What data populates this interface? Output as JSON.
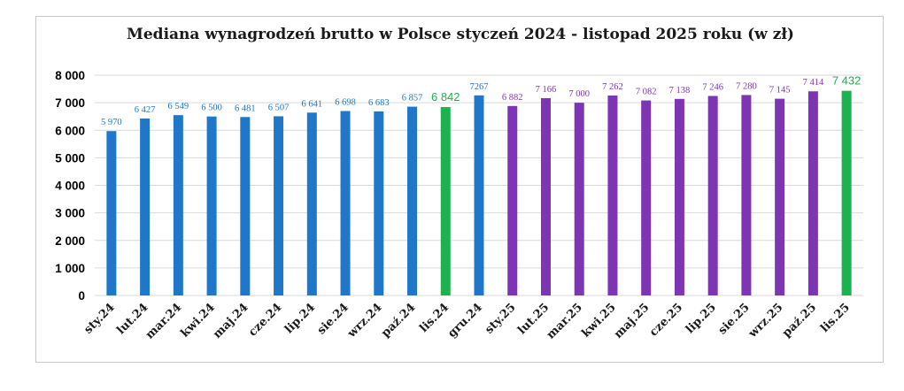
{
  "chart_data": {
    "type": "bar",
    "title": "Mediana wynagrodzeń brutto w Polsce styczeń 2024 - listopad 2025 roku (w zł)",
    "xlabel": "",
    "ylabel": "",
    "ylim": [
      0,
      8000
    ],
    "y_ticks": [
      "0",
      "1 000",
      "2 000",
      "3 000",
      "4 000",
      "5 000",
      "6 000",
      "7 000",
      "8 000"
    ],
    "grid": true,
    "colors": {
      "blue": "#1f77c9",
      "purple": "#7e35b4",
      "green": "#1bb24f"
    },
    "categories": [
      "sty.24",
      "lut.24",
      "mar.24",
      "kwi.24",
      "maj.24",
      "cze.24",
      "lip.24",
      "sie.24",
      "wrz.24",
      "paź.24",
      "lis.24",
      "gru.24",
      "sty.25",
      "lut.25",
      "mar.25",
      "kwi.25",
      "maj.25",
      "cze.25",
      "lip.25",
      "sie.25",
      "wrz.25",
      "paź.25",
      "lis.25"
    ],
    "values": [
      5970,
      6427,
      6549,
      6500,
      6481,
      6507,
      6641,
      6698,
      6683,
      6857,
      6842,
      7267,
      6882,
      7166,
      7000,
      7262,
      7082,
      7138,
      7246,
      7280,
      7145,
      7414,
      7432
    ],
    "labels": [
      "5 970",
      "6 427",
      "6 549",
      "6 500",
      "6 481",
      "6 507",
      "6 641",
      "6 698",
      "6 683",
      "6 857",
      "6 842",
      "7267",
      "6 882",
      "7 166",
      "7 000",
      "7 262",
      "7 082",
      "7 138",
      "7 246",
      "7 280",
      "7 145",
      "7 414",
      "7 432"
    ],
    "bar_colors": [
      "blue",
      "blue",
      "blue",
      "blue",
      "blue",
      "blue",
      "blue",
      "blue",
      "blue",
      "blue",
      "green",
      "blue",
      "purple",
      "purple",
      "purple",
      "purple",
      "purple",
      "purple",
      "purple",
      "purple",
      "purple",
      "purple",
      "green"
    ]
  }
}
